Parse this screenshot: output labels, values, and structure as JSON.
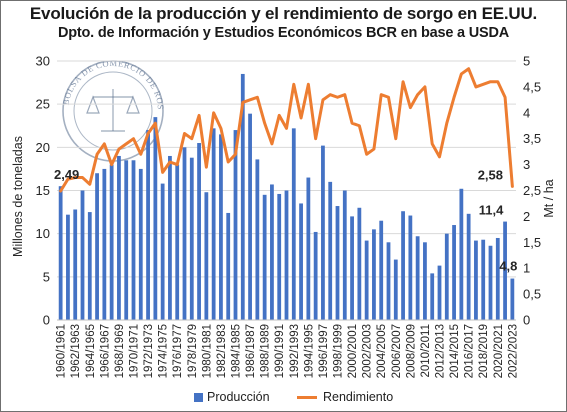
{
  "title": "Evolución de la producción y el rendimiento de sorgo en EE.UU.",
  "subtitle": "Dpto. de Información y Estudios Económicos BCR en base a USDA",
  "colors": {
    "bar": "#4472c4",
    "line": "#ed7d31",
    "grid": "#d9d9d9",
    "text": "#262626"
  },
  "chart_data": {
    "type": "bar+line",
    "grid": true,
    "legend_position": "bottom",
    "x_tick_labels": [
      "1960/1961",
      "1962/1963",
      "1964/1965",
      "1966/1967",
      "1968/1969",
      "1970/1971",
      "1972/1973",
      "1974/1975",
      "1976/1977",
      "1978/1979",
      "1980/1981",
      "1982/1983",
      "1984/1985",
      "1986/1987",
      "1988/1989",
      "1990/1991",
      "1992/1993",
      "1994/1995",
      "1996/1997",
      "1998/1999",
      "2000/2001",
      "2002/2003",
      "2004/2005",
      "2006/2007",
      "2008/2009",
      "2010/2011",
      "2012/2013",
      "2014/2015",
      "2016/2017",
      "2018/2019",
      "2020/2021",
      "2022/2023"
    ],
    "y_left": {
      "label": "Millones de toneladas",
      "range": [
        0,
        30
      ],
      "ticks": [
        "0",
        "5",
        "10",
        "15",
        "20",
        "25",
        "30"
      ]
    },
    "y_right": {
      "label": "Mt / ha",
      "range": [
        0,
        5
      ],
      "ticks": [
        "0",
        "0,5",
        "1",
        "1,5",
        "2",
        "2,5",
        "3",
        "3,5",
        "4",
        "4,5",
        "5"
      ]
    },
    "series": [
      {
        "name": "Producción",
        "kind": "bar",
        "axis": "left",
        "values": [
          15.5,
          12.2,
          12.8,
          15.0,
          12.5,
          17.0,
          17.5,
          18.0,
          19.0,
          18.5,
          18.5,
          17.5,
          22.0,
          23.5,
          15.8,
          19.0,
          18.0,
          20.0,
          18.8,
          20.5,
          14.8,
          22.2,
          21.5,
          12.4,
          22.0,
          28.5,
          23.9,
          18.6,
          14.5,
          15.7,
          14.6,
          15.0,
          22.2,
          13.5,
          16.5,
          10.2,
          20.2,
          16.0,
          13.2,
          15.0,
          12.0,
          13.0,
          9.2,
          10.5,
          11.5,
          9.0,
          7.0,
          12.6,
          12.1,
          9.7,
          9.0,
          5.4,
          6.3,
          10.0,
          11.0,
          15.2,
          12.3,
          9.2,
          9.3,
          8.6,
          9.5,
          11.4,
          4.8
        ]
      },
      {
        "name": "Rendimiento",
        "kind": "line",
        "axis": "right",
        "values": [
          2.49,
          2.72,
          2.75,
          2.75,
          2.62,
          3.2,
          3.4,
          3.0,
          3.3,
          3.4,
          3.5,
          3.2,
          3.6,
          3.8,
          2.85,
          3.05,
          3.0,
          3.6,
          3.5,
          3.95,
          2.95,
          4.0,
          3.7,
          3.05,
          3.2,
          4.2,
          4.25,
          4.3,
          3.8,
          3.4,
          3.95,
          3.7,
          4.55,
          3.9,
          4.55,
          3.5,
          4.25,
          4.35,
          4.3,
          4.35,
          3.8,
          3.75,
          3.2,
          3.3,
          4.35,
          4.3,
          3.5,
          4.6,
          4.1,
          4.35,
          4.5,
          3.4,
          3.15,
          3.8,
          4.3,
          4.75,
          4.85,
          4.5,
          4.55,
          4.6,
          4.6,
          4.3,
          2.58
        ]
      }
    ],
    "annotations": [
      {
        "text": "2,49",
        "series": "Rendimiento",
        "index": 0
      },
      {
        "text": "2,58",
        "series": "Rendimiento",
        "index": 62
      },
      {
        "text": "11,4",
        "series": "Producción",
        "index": 61
      },
      {
        "text": "4,8",
        "series": "Producción",
        "index": 62
      }
    ]
  },
  "legend": {
    "bar_label": "Producción",
    "line_label": "Rendimiento"
  }
}
